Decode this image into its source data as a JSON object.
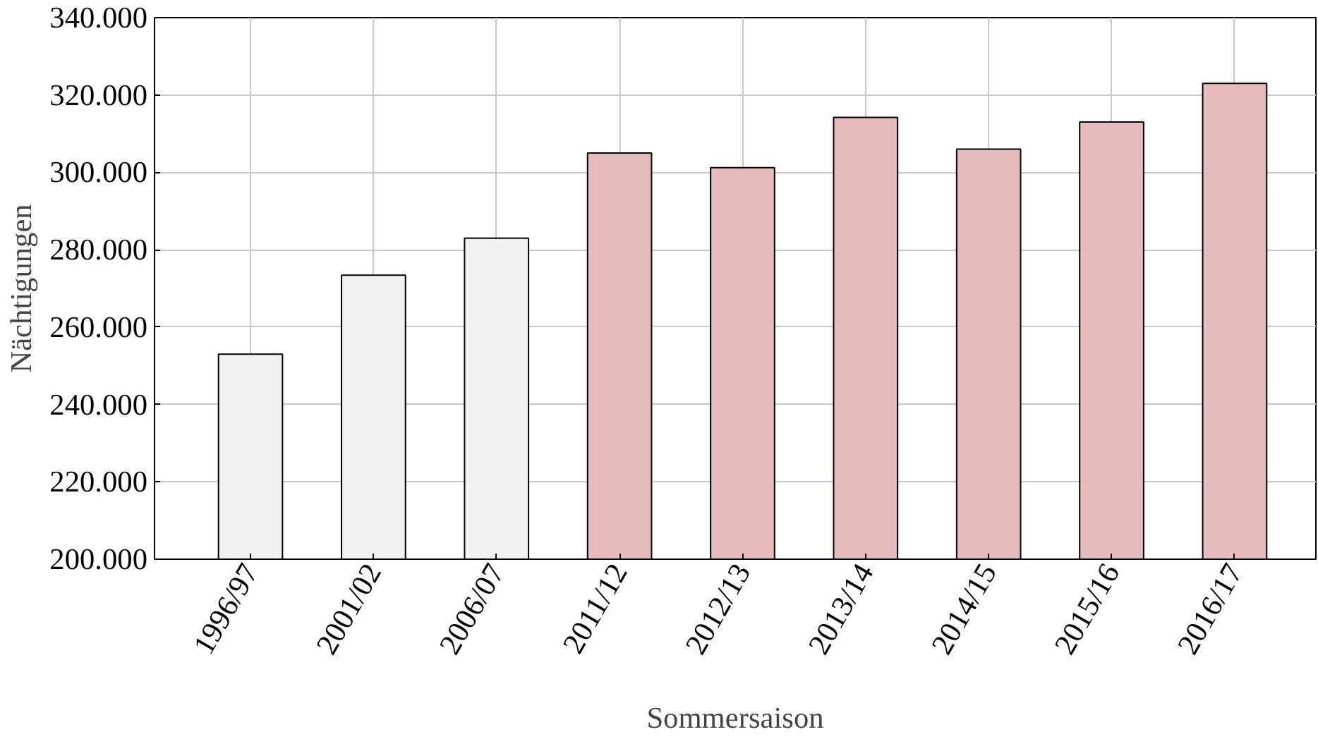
{
  "chart_data": {
    "type": "bar",
    "xlabel": "Sommersaison",
    "ylabel": "Nächtigungen",
    "categories": [
      "1996/97",
      "2001/02",
      "2006/07",
      "2011/12",
      "2012/13",
      "2013/14",
      "2014/15",
      "2015/16",
      "2016/17"
    ],
    "values": [
      253000,
      273400,
      283000,
      305000,
      301200,
      314200,
      306000,
      313000,
      323000
    ],
    "colors": [
      "#f0f0f0",
      "#f0f0f0",
      "#f0f0f0",
      "#e6bbbb",
      "#e6bbbb",
      "#e6bbbb",
      "#e6bbbb",
      "#e6bbbb",
      "#e6bbbb"
    ],
    "ylim": [
      200000,
      340000
    ],
    "yticks": [
      {
        "value": 200000,
        "label": "200.000"
      },
      {
        "value": 220000,
        "label": "220.000"
      },
      {
        "value": 240000,
        "label": "240.000"
      },
      {
        "value": 260000,
        "label": "260.000"
      },
      {
        "value": 280000,
        "label": "280.000"
      },
      {
        "value": 300000,
        "label": "300.000"
      },
      {
        "value": 320000,
        "label": "320.000"
      },
      {
        "value": 340000,
        "label": "340.000"
      }
    ],
    "grid": true
  }
}
